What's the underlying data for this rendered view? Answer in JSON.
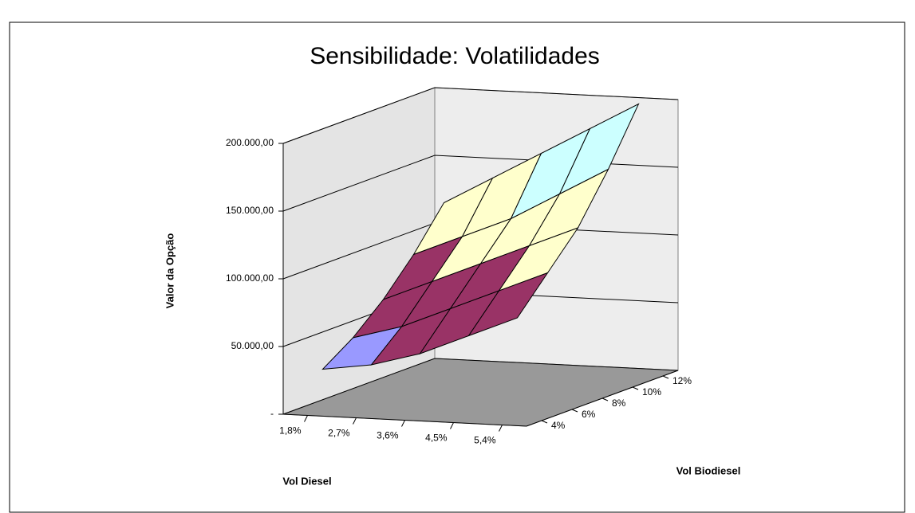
{
  "chart_data": {
    "type": "surface3d",
    "title": "Sensibilidade:  Volatilidades",
    "y_label": "Valor da Opção",
    "x_label": "Vol Diesel",
    "z_label": "Vol Biodiesel",
    "x_categories": [
      "1,8%",
      "2,7%",
      "3,6%",
      "4,5%",
      "5,4%"
    ],
    "z_categories": [
      "4%",
      "6%",
      "8%",
      "10%",
      "12%"
    ],
    "values": [
      [
        30000,
        35000,
        45000,
        60000,
        75000
      ],
      [
        45000,
        55000,
        70000,
        85000,
        100000
      ],
      [
        65000,
        80000,
        95000,
        110000,
        125000
      ],
      [
        90000,
        105000,
        120000,
        140000,
        160000
      ],
      [
        120000,
        140000,
        160000,
        180000,
        200000
      ]
    ],
    "ylim": [
      0,
      200000
    ],
    "yticks": [
      {
        "value": 0,
        "label": "-"
      },
      {
        "value": 50000,
        "label": "50.000,00"
      },
      {
        "value": 100000,
        "label": "100.000,00"
      },
      {
        "value": 150000,
        "label": "150.000,00"
      },
      {
        "value": 200000,
        "label": "200.000,00"
      }
    ],
    "band_colors": [
      "#9999ff",
      "#993366",
      "#ffffcc",
      "#ccffff"
    ],
    "grid": true
  }
}
